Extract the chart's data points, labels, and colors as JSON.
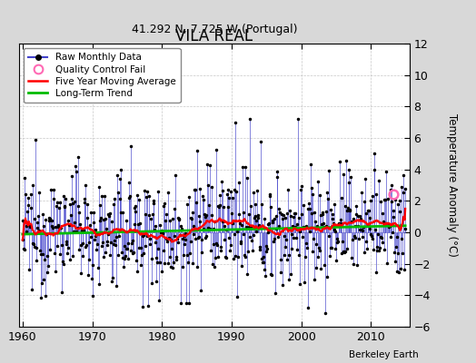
{
  "title": "VILA REAL",
  "subtitle": "41.292 N, 7.725 W (Portugal)",
  "ylabel": "Temperature Anomaly (°C)",
  "credit": "Berkeley Earth",
  "xlim": [
    1959.5,
    2015.5
  ],
  "ylim": [
    -6,
    12
  ],
  "yticks": [
    -6,
    -4,
    -2,
    0,
    2,
    4,
    6,
    8,
    10,
    12
  ],
  "xticks": [
    1960,
    1970,
    1980,
    1990,
    2000,
    2010
  ],
  "background_color": "#d8d8d8",
  "plot_bg_color": "#ffffff",
  "raw_color": "#4444cc",
  "dot_color": "#000000",
  "moving_avg_color": "#ff0000",
  "trend_color": "#00bb00",
  "qc_fail_color": "#ff69b4",
  "qc_fail_x": 2013.2,
  "qc_fail_y": 2.4,
  "seed": 12345,
  "start_year": 1960.0,
  "n_months": 660
}
